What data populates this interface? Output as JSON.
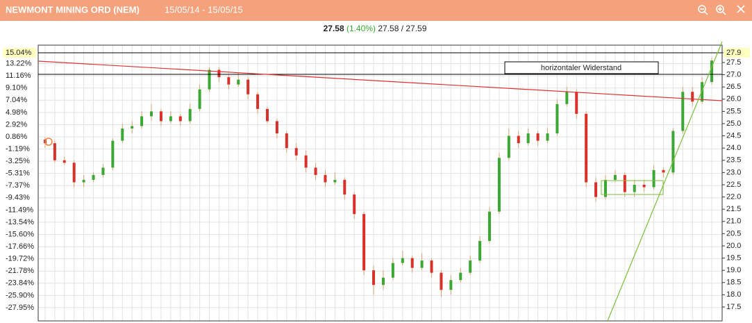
{
  "header": {
    "title": "NEWMONT MINING ORD (NEM)",
    "period": "15/05/14 - 15/05/15"
  },
  "quote": {
    "last": "27.58",
    "change": "(1.40%)",
    "bid_ask": "27.58 / 27.59"
  },
  "chart_data": {
    "type": "candlestick",
    "annotation": "horizontaler Widerstand",
    "categories": [
      null,
      null,
      null,
      null,
      null,
      null,
      null,
      null,
      null,
      null,
      null,
      null,
      null,
      null,
      null,
      null,
      null,
      null,
      null,
      null,
      null,
      null,
      null,
      null,
      null,
      null,
      null,
      null,
      null,
      null,
      null,
      null,
      null,
      null,
      null,
      null,
      null,
      null,
      null,
      null,
      null,
      null,
      null,
      null,
      null,
      null,
      null,
      null,
      null,
      null,
      null,
      null,
      null,
      null,
      null,
      null,
      null,
      null,
      null,
      null,
      null,
      null,
      null,
      null,
      null,
      null,
      null,
      null,
      null,
      null
    ],
    "open": [
      24.35,
      24.2,
      23.5,
      23.4,
      22.6,
      22.7,
      22.9,
      23.2,
      24.3,
      24.8,
      24.9,
      25.3,
      25.5,
      25.1,
      25.3,
      25.1,
      25.6,
      26.4,
      27.2,
      26.9,
      26.6,
      26.8,
      26.2,
      25.6,
      25.1,
      24.6,
      24.0,
      23.7,
      23.2,
      22.9,
      22.6,
      22.7,
      22.1,
      21.3,
      19.0,
      18.4,
      18.7,
      19.3,
      19.5,
      19.1,
      19.4,
      18.9,
      18.2,
      18.6,
      18.9,
      19.4,
      20.2,
      21.4,
      23.6,
      24.5,
      24.2,
      24.6,
      24.3,
      24.6,
      25.8,
      26.3,
      25.4,
      22.6,
      22.0,
      22.7,
      22.9,
      22.2,
      22.5,
      22.4,
      23.1,
      23.0,
      24.7,
      26.3,
      25.9,
      26.7
    ],
    "high": [
      24.45,
      24.3,
      23.65,
      23.5,
      22.9,
      23.0,
      23.35,
      24.4,
      25.0,
      25.1,
      25.5,
      25.8,
      25.6,
      25.5,
      25.4,
      25.8,
      26.6,
      27.3,
      27.3,
      27.0,
      27.1,
      26.9,
      26.3,
      25.7,
      25.2,
      24.7,
      24.2,
      23.9,
      23.4,
      23.1,
      23.0,
      22.8,
      22.2,
      21.4,
      19.2,
      19.0,
      19.5,
      19.8,
      19.6,
      19.7,
      19.5,
      19.0,
      18.8,
      19.1,
      19.6,
      20.4,
      21.6,
      23.8,
      24.8,
      24.7,
      24.8,
      24.7,
      24.8,
      26.0,
      26.5,
      26.4,
      25.5,
      22.8,
      22.9,
      23.1,
      23.0,
      22.7,
      22.7,
      23.3,
      23.2,
      24.8,
      26.5,
      26.5,
      26.9,
      27.7
    ],
    "low": [
      24.0,
      23.4,
      23.3,
      22.4,
      22.4,
      22.6,
      22.8,
      23.1,
      24.2,
      24.6,
      24.8,
      25.1,
      24.9,
      25.0,
      24.9,
      25.0,
      25.5,
      26.3,
      26.7,
      26.4,
      26.5,
      26.0,
      25.4,
      25.0,
      24.4,
      23.8,
      23.5,
      23.0,
      22.7,
      22.4,
      22.5,
      21.9,
      21.1,
      18.8,
      18.0,
      18.2,
      18.6,
      19.2,
      18.9,
      19.0,
      18.7,
      17.9,
      18.0,
      18.5,
      18.8,
      19.3,
      20.1,
      21.3,
      23.5,
      24.0,
      24.1,
      24.1,
      24.2,
      24.5,
      25.7,
      25.2,
      22.4,
      21.8,
      21.9,
      22.6,
      22.0,
      22.0,
      22.2,
      22.3,
      22.8,
      22.9,
      24.6,
      25.7,
      25.8,
      26.6
    ],
    "close": [
      24.2,
      23.5,
      23.4,
      22.6,
      22.7,
      22.9,
      23.2,
      24.3,
      24.8,
      24.9,
      25.3,
      25.5,
      25.1,
      25.3,
      25.1,
      25.6,
      26.4,
      27.2,
      26.9,
      26.6,
      26.8,
      26.2,
      25.6,
      25.1,
      24.6,
      24.0,
      23.7,
      23.2,
      22.9,
      22.6,
      22.7,
      22.1,
      21.3,
      19.0,
      18.4,
      18.7,
      19.3,
      19.5,
      19.1,
      19.4,
      18.9,
      18.2,
      18.6,
      18.9,
      19.4,
      20.2,
      21.4,
      23.6,
      24.5,
      24.2,
      24.6,
      24.3,
      24.6,
      25.8,
      26.3,
      25.4,
      22.6,
      22.0,
      22.7,
      22.9,
      22.2,
      22.5,
      22.4,
      23.1,
      23.0,
      24.7,
      26.3,
      25.9,
      26.7,
      27.58
    ],
    "up_color": "#3aa832",
    "down_color": "#d9302a",
    "ylim": [
      -30.19,
      16.33
    ],
    "yticks": [
      {
        "value": 15.04,
        "label": "15.04%"
      },
      {
        "value": 13.22,
        "label": "13.22%"
      },
      {
        "value": 11.16,
        "label": "11.16%"
      },
      {
        "value": 9.1,
        "label": "9.10%"
      },
      {
        "value": 7.04,
        "label": "7.04%"
      },
      {
        "value": 4.98,
        "label": "4.98%"
      },
      {
        "value": 2.92,
        "label": "2.92%"
      },
      {
        "value": 0.86,
        "label": "0.86%"
      },
      {
        "value": -1.19,
        "label": "-1.19%"
      },
      {
        "value": -3.25,
        "label": "-3.25%"
      },
      {
        "value": -5.31,
        "label": "-5.31%"
      },
      {
        "value": -7.37,
        "label": "-7.37%"
      },
      {
        "value": -9.43,
        "label": "-9.43%"
      },
      {
        "value": -11.49,
        "label": "-11.49%"
      },
      {
        "value": -13.54,
        "label": "-13.54%"
      },
      {
        "value": -15.6,
        "label": "-15.60%"
      },
      {
        "value": -17.66,
        "label": "-17.66%"
      },
      {
        "value": -19.72,
        "label": "-19.72%"
      },
      {
        "value": -21.78,
        "label": "-21.78%"
      },
      {
        "value": -23.84,
        "label": "-23.84%"
      },
      {
        "value": -25.9,
        "label": "-25.90%"
      },
      {
        "value": -27.95,
        "label": "-27.95%"
      }
    ],
    "y2lim": [
      16.93,
      28.21
    ],
    "y2ticks": [
      27.9,
      27.5,
      {
        "value": 27,
        "label": "27.0"
      },
      26.5,
      {
        "value": 26,
        "label": "26.0"
      },
      25.5,
      {
        "value": 25,
        "label": "25.0"
      },
      24.5,
      {
        "value": 24,
        "label": "24.0"
      },
      23.5,
      {
        "value": 23,
        "label": "23.0"
      },
      22.5,
      {
        "value": 22,
        "label": "22.0"
      },
      21.5,
      {
        "value": 21,
        "label": "21.0"
      },
      20.5,
      {
        "value": 20,
        "label": "20.0"
      },
      19.5,
      {
        "value": 19,
        "label": "19.0"
      },
      18.5,
      {
        "value": 18,
        "label": "18.0"
      },
      17.5
    ],
    "grid": true
  }
}
